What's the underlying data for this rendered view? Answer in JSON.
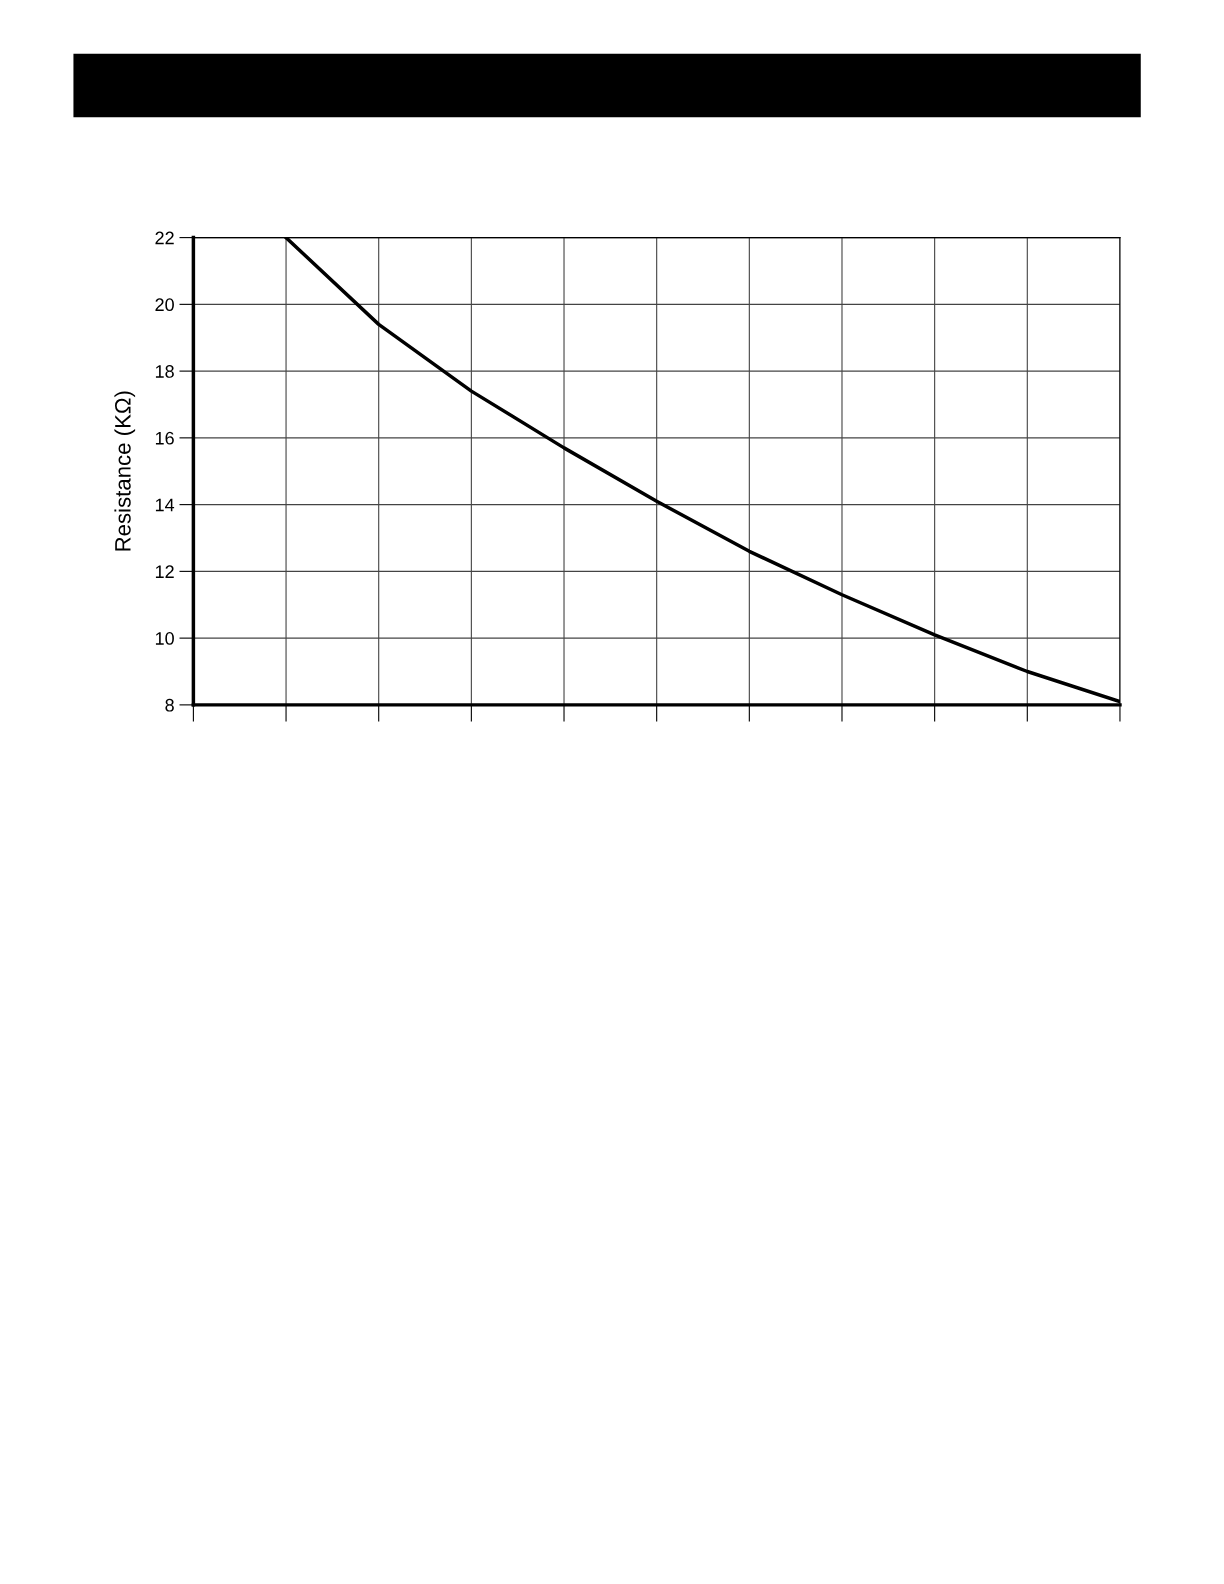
{
  "chart_data": {
    "type": "line",
    "ylabel": "Resistance (KΩ)",
    "categories": [
      null,
      null,
      null,
      null,
      null,
      null,
      null,
      null,
      null,
      null,
      null
    ],
    "series": [
      {
        "color": "#000000",
        "values": [
          null,
          22,
          19.4,
          17.4,
          15.7,
          14.1,
          12.6,
          11.3,
          10.1,
          9.0,
          8.1
        ]
      }
    ],
    "ylim": [
      8,
      22
    ],
    "yticks": [
      8,
      10,
      12,
      14,
      16,
      18,
      20,
      22
    ],
    "grid": true,
    "marker": "none",
    "line_style": "solid",
    "legend": false,
    "tick_labels": "y"
  }
}
